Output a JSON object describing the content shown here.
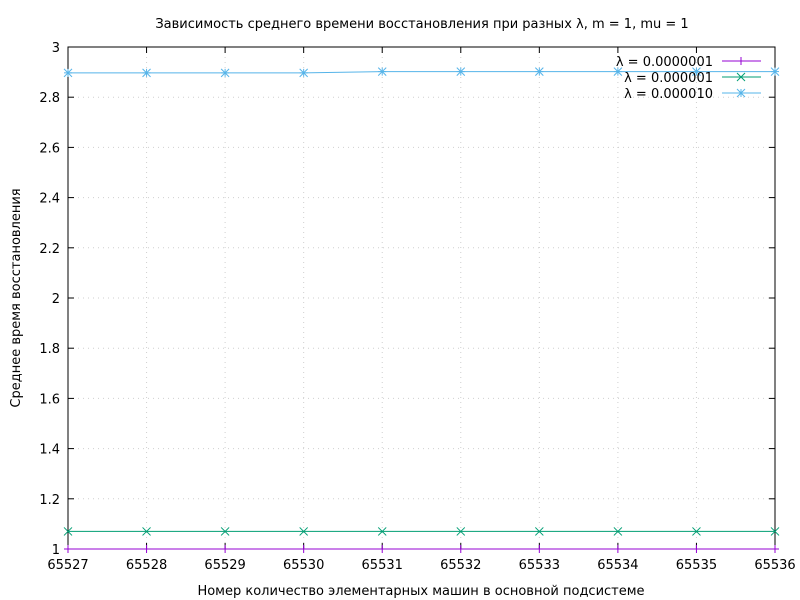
{
  "chart_data": {
    "type": "line",
    "title": "Зависимость среднего времени восстановления при разных λ, m = 1, mu = 1",
    "xlabel": "Номер количество элементарных машин в основной подсистеме",
    "ylabel": "Среднее время восстановления",
    "xlim": [
      65527,
      65536
    ],
    "ylim": [
      1,
      3
    ],
    "x": [
      65527,
      65528,
      65529,
      65530,
      65531,
      65532,
      65533,
      65534,
      65535,
      65536
    ],
    "x_tick_labels": [
      "65527",
      "65528",
      "65529",
      "65530",
      "65531",
      "65532",
      "65533",
      "65534",
      "65535",
      "65536"
    ],
    "y_ticks": [
      1,
      1.2,
      1.4,
      1.6,
      1.8,
      2,
      2.2,
      2.4,
      2.6,
      2.8,
      3
    ],
    "y_tick_labels": [
      "1",
      "1.2",
      "1.4",
      "1.6",
      "1.8",
      "2",
      "2.2",
      "2.4",
      "2.6",
      "2.8",
      "3"
    ],
    "grid": true,
    "legend_position": "top-right",
    "series": [
      {
        "name": "λ = 0.0000001",
        "color": "#9400d3",
        "marker": "plus",
        "values": [
          1.0,
          1.0,
          1.0,
          1.0,
          1.0,
          1.0,
          1.0,
          1.0,
          1.0,
          1.0
        ]
      },
      {
        "name": "λ = 0.000001",
        "color": "#009e73",
        "marker": "cross",
        "values": [
          1.07,
          1.07,
          1.07,
          1.07,
          1.07,
          1.07,
          1.07,
          1.07,
          1.07,
          1.07
        ]
      },
      {
        "name": "λ = 0.000010",
        "color": "#56b4e9",
        "marker": "star",
        "values": [
          2.897,
          2.897,
          2.897,
          2.897,
          2.902,
          2.902,
          2.902,
          2.902,
          2.902,
          2.902
        ]
      }
    ]
  }
}
